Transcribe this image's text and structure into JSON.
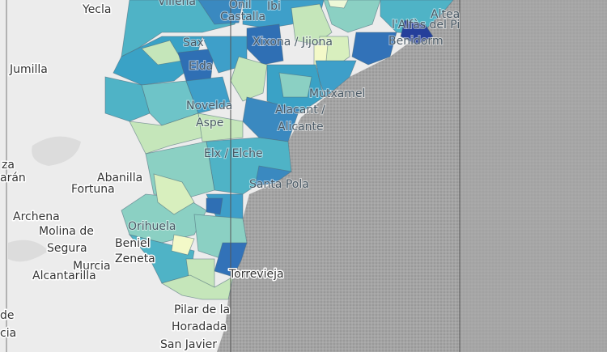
{
  "places": [
    {
      "label": "Yecla"
    },
    {
      "label": "Villena"
    },
    {
      "label": "Onil"
    },
    {
      "label": "Ibi"
    },
    {
      "label": "Castalla"
    },
    {
      "label": "Sax"
    },
    {
      "label": "Xixona / Jijona"
    },
    {
      "label": "Altea"
    },
    {
      "label": "l'Alfàs del Pi"
    },
    {
      "label": "Benidorm"
    },
    {
      "label": "Jumilla"
    },
    {
      "label": "Elda"
    },
    {
      "label": "Mutxamel"
    },
    {
      "label": "Novelda"
    },
    {
      "label": "Aspe"
    },
    {
      "label": "Alacant /"
    },
    {
      "label": "Alicante"
    },
    {
      "label": "Elx / Elche"
    },
    {
      "label": "Santa Pola"
    },
    {
      "label": "za"
    },
    {
      "label": "arán"
    },
    {
      "label": "Abanilla"
    },
    {
      "label": "Fortuna"
    },
    {
      "label": "Archena"
    },
    {
      "label": "Molina de"
    },
    {
      "label": "Segura"
    },
    {
      "label": "Beniel"
    },
    {
      "label": "Zeneta"
    },
    {
      "label": "Murcia"
    },
    {
      "label": "Alcantarilla"
    },
    {
      "label": "Orihuela"
    },
    {
      "label": "Torrevieja"
    },
    {
      "label": "de"
    },
    {
      "label": "cia"
    },
    {
      "label": "Pilar de la"
    },
    {
      "label": "Horadada"
    },
    {
      "label": "San Javier"
    }
  ]
}
